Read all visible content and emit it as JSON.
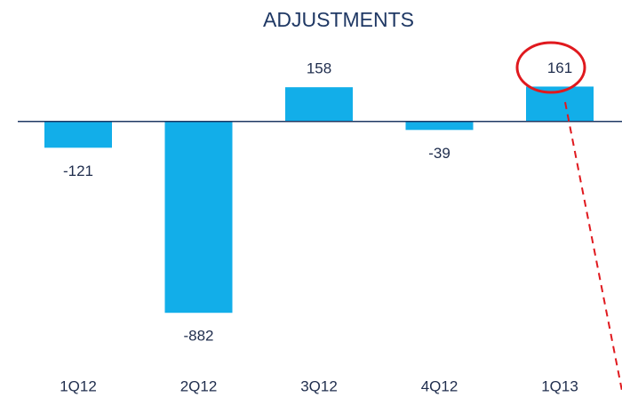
{
  "chart_data": {
    "type": "bar",
    "title": "ADJUSTMENTS",
    "categories": [
      "1Q12",
      "2Q12",
      "3Q12",
      "4Q12",
      "1Q13"
    ],
    "values": [
      -121,
      -882,
      158,
      -39,
      161
    ],
    "color": "#12aee9",
    "ylim": [
      -1270,
      560
    ]
  }
}
